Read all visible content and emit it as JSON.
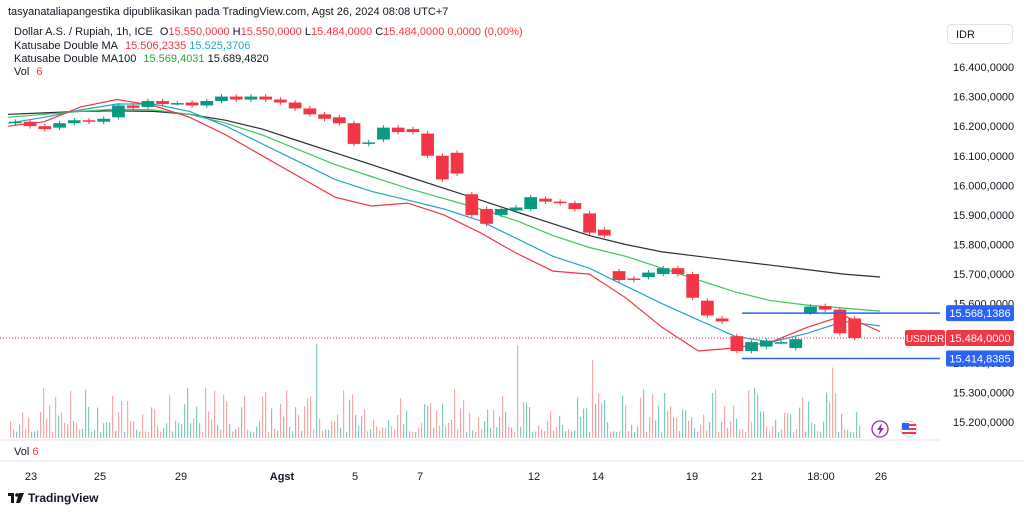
{
  "header": {
    "publisher": "tasyanataliapangestika dipublikasikan pada TradingView.com, Agst 26, 2024 08:08 UTC+7",
    "symbol": "Dollar A.S. / Rupiah, 1h, ICE",
    "o_label": "O",
    "o_value": "15.550,0000",
    "h_label": "H",
    "h_value": "15.550,0000",
    "l_label": "L",
    "l_value": "15.484,0000",
    "c_label": "C",
    "c_value": "15.484,0000",
    "change": "0,0000 (0,00%)",
    "ma1_name": "Katusabe Double MA",
    "ma1_v1": "15.506,2335",
    "ma1_v2": "15.525,3706",
    "ma2_name": "Katusabe Double MA100",
    "ma2_v1": "15.569,4031",
    "ma2_v2": "15.689,4820",
    "vol_name": "Vol",
    "vol_value": "6"
  },
  "currency_button": "IDR",
  "pane2": {
    "vol_name": "Vol",
    "vol_value": "6"
  },
  "footer": {
    "brand": "TradingView"
  },
  "colors": {
    "up": "#089981",
    "down": "#f23645",
    "blue_ma": "#26a6c7",
    "red_ma": "#f23645",
    "green_ma": "#3cc85c",
    "dark_ma": "#2a2e39",
    "hline": "#2962ff"
  },
  "icons": {
    "flash": "lightning-icon",
    "flag": "us-flag-icon",
    "logo": "tradingview-logo-icon"
  },
  "chart_data": {
    "type": "candlestick",
    "y_axis": {
      "min": 15150000,
      "max": 16450000,
      "ticks": [
        16400000,
        16300000,
        16200000,
        16100000,
        16000000,
        15900000,
        15800000,
        15700000,
        15600000,
        15500000,
        15400000,
        15300000,
        15200000
      ],
      "tick_labels": [
        "16.400,0000",
        "16.300,0000",
        "16.200,0000",
        "16.100,0000",
        "16.000,0000",
        "15.900,0000",
        "15.800,0000",
        "15.700,0000",
        "15.600,0000",
        "15.500,0000",
        "15.400,0000",
        "15.300,0000",
        "15.200,0000"
      ]
    },
    "x_axis": {
      "labels": [
        "23",
        "25",
        "29",
        "Agst",
        "5",
        "7",
        "12",
        "14",
        "19",
        "21",
        "18:00",
        "26"
      ]
    },
    "price_labels": [
      {
        "text": "15.568,1386",
        "value": 15568.1386,
        "style": "blue"
      },
      {
        "text": "USDIDR",
        "value": 15484,
        "style": "red-tag"
      },
      {
        "text": "15.484,0000",
        "value": 15484,
        "style": "red"
      },
      {
        "text": "15.414,8385",
        "value": 15414.8385,
        "style": "blue"
      }
    ],
    "h_lines": [
      15568.1386,
      15414.8385
    ],
    "last_price": 15484,
    "ma_dark": [
      16240,
      16245,
      16250,
      16252,
      16250,
      16240,
      16220,
      16190,
      16150,
      16110,
      16070,
      16030,
      15990,
      15950,
      15910,
      15870,
      15830,
      15800,
      15775,
      15760,
      15745,
      15730,
      15715,
      15700,
      15690
    ],
    "ma_green": [
      16230,
      16240,
      16250,
      16258,
      16255,
      16240,
      16210,
      16170,
      16120,
      16070,
      16030,
      15990,
      15955,
      15920,
      15880,
      15830,
      15790,
      15760,
      15720,
      15680,
      15640,
      15610,
      15595,
      15585,
      15575
    ],
    "ma_blue": [
      16210,
      16230,
      16255,
      16275,
      16275,
      16250,
      16200,
      16140,
      16080,
      16020,
      15980,
      15950,
      15920,
      15880,
      15820,
      15760,
      15720,
      15660,
      15600,
      15545,
      15490,
      15470,
      15500,
      15540,
      15525
    ],
    "ma_red": [
      16200,
      16215,
      16265,
      16290,
      16270,
      16230,
      16170,
      16100,
      16030,
      15960,
      15930,
      15940,
      15900,
      15840,
      15770,
      15710,
      15700,
      15620,
      15520,
      15440,
      15450,
      15470,
      15520,
      15560,
      15506
    ],
    "candles": [
      {
        "o": 16210,
        "c": 16215
      },
      {
        "o": 16215,
        "c": 16200
      },
      {
        "o": 16200,
        "c": 16190
      },
      {
        "o": 16195,
        "c": 16210
      },
      {
        "o": 16210,
        "c": 16220
      },
      {
        "o": 16220,
        "c": 16215
      },
      {
        "o": 16215,
        "c": 16225
      },
      {
        "o": 16230,
        "c": 16270
      },
      {
        "o": 16270,
        "c": 16262
      },
      {
        "o": 16265,
        "c": 16285
      },
      {
        "o": 16285,
        "c": 16275
      },
      {
        "o": 16278,
        "c": 16278
      },
      {
        "o": 16280,
        "c": 16270
      },
      {
        "o": 16270,
        "c": 16285
      },
      {
        "o": 16285,
        "c": 16300
      },
      {
        "o": 16300,
        "c": 16290
      },
      {
        "o": 16290,
        "c": 16300
      },
      {
        "o": 16300,
        "c": 16290
      },
      {
        "o": 16290,
        "c": 16280
      },
      {
        "o": 16280,
        "c": 16260
      },
      {
        "o": 16260,
        "c": 16240
      },
      {
        "o": 16240,
        "c": 16225
      },
      {
        "o": 16230,
        "c": 16210
      },
      {
        "o": 16210,
        "c": 16140
      },
      {
        "o": 16140,
        "c": 16145
      },
      {
        "o": 16155,
        "c": 16195
      },
      {
        "o": 16195,
        "c": 16180
      },
      {
        "o": 16190,
        "c": 16180
      },
      {
        "o": 16175,
        "c": 16100
      },
      {
        "o": 16100,
        "c": 16020
      },
      {
        "o": 16110,
        "c": 16040
      },
      {
        "o": 15970,
        "c": 15900
      },
      {
        "o": 15920,
        "c": 15870
      },
      {
        "o": 15900,
        "c": 15920
      },
      {
        "o": 15915,
        "c": 15925
      },
      {
        "o": 15920,
        "c": 15960
      },
      {
        "o": 15955,
        "c": 15945
      },
      {
        "o": 15945,
        "c": 15940
      },
      {
        "o": 15940,
        "c": 15920
      },
      {
        "o": 15905,
        "c": 15840
      },
      {
        "o": 15850,
        "c": 15830
      },
      {
        "o": 15710,
        "c": 15680
      },
      {
        "o": 15685,
        "c": 15680
      },
      {
        "o": 15690,
        "c": 15705
      },
      {
        "o": 15700,
        "c": 15720
      },
      {
        "o": 15720,
        "c": 15700
      },
      {
        "o": 15700,
        "c": 15620
      },
      {
        "o": 15610,
        "c": 15560
      },
      {
        "o": 15550,
        "c": 15540
      },
      {
        "o": 15490,
        "c": 15440
      },
      {
        "o": 15440,
        "c": 15470
      },
      {
        "o": 15455,
        "c": 15475
      },
      {
        "o": 15470,
        "c": 15470
      },
      {
        "o": 15450,
        "c": 15480
      },
      {
        "o": 15570,
        "c": 15590
      },
      {
        "o": 15592,
        "c": 15580
      },
      {
        "o": 15580,
        "c": 15500
      },
      {
        "o": 15550,
        "c": 15484
      }
    ]
  }
}
